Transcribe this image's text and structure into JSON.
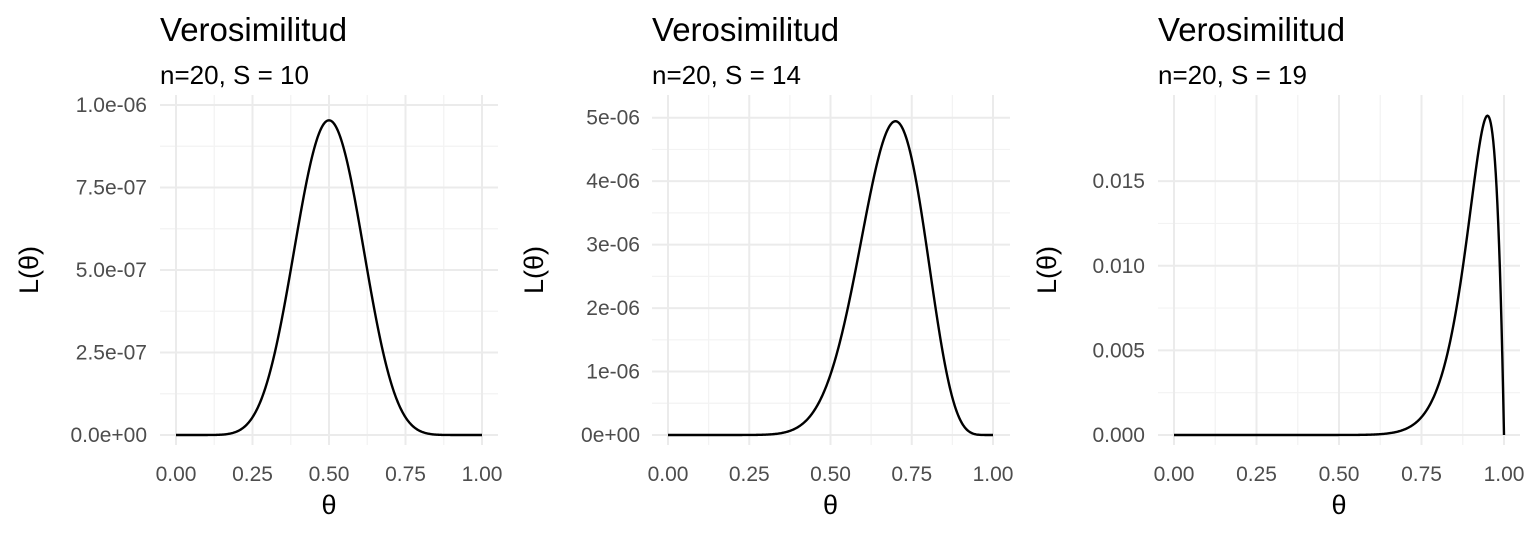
{
  "chart_data": [
    {
      "type": "line",
      "title": "Verosimilitud",
      "subtitle": "n=20, S = 10",
      "xlabel": "θ",
      "ylabel": "L(θ)",
      "n": 20,
      "S": 10,
      "xlim": [
        0,
        1
      ],
      "ylim": [
        0,
        1e-06
      ],
      "xticks": [
        "0.00",
        "0.25",
        "0.50",
        "0.75",
        "1.00"
      ],
      "xtick_values": [
        0,
        0.25,
        0.5,
        0.75,
        1
      ],
      "yticks": [
        "0.0e+00",
        "2.5e-07",
        "5.0e-07",
        "7.5e-07",
        "1.0e-06"
      ],
      "ytick_values": [
        0,
        2.5e-07,
        5e-07,
        7.5e-07,
        1e-06
      ],
      "series": [
        {
          "x": [
            0,
            0.05,
            0.1,
            0.15,
            0.2,
            0.25,
            0.3,
            0.35,
            0.4,
            0.45,
            0.5,
            0.55,
            0.6,
            0.65,
            0.7,
            0.75,
            0.8,
            0.85,
            0.9,
            0.95,
            1
          ],
          "values": [
            0,
            0,
            0,
            1e-12,
            1.1e-08,
            5.6e-08,
            1.77e-07,
            3.84e-07,
            6.22e-07,
            8.31e-07,
            9.54e-07,
            8.31e-07,
            6.22e-07,
            3.84e-07,
            1.77e-07,
            5.6e-08,
            1.1e-08,
            1e-12,
            0,
            0,
            0
          ]
        }
      ],
      "grid": true
    },
    {
      "type": "line",
      "title": "Verosimilitud",
      "subtitle": "n=20, S = 14",
      "xlabel": "θ",
      "ylabel": "L(θ)",
      "n": 20,
      "S": 14,
      "xlim": [
        0,
        1
      ],
      "ylim": [
        0,
        5.2e-06
      ],
      "xticks": [
        "0.00",
        "0.25",
        "0.50",
        "0.75",
        "1.00"
      ],
      "xtick_values": [
        0,
        0.25,
        0.5,
        0.75,
        1
      ],
      "yticks": [
        "0e+00",
        "1e-06",
        "2e-06",
        "3e-06",
        "4e-06",
        "5e-06"
      ],
      "ytick_values": [
        0,
        1e-06,
        2e-06,
        3e-06,
        4e-06,
        5e-06
      ],
      "series": [
        {
          "x": [
            0,
            0.05,
            0.1,
            0.15,
            0.2,
            0.25,
            0.3,
            0.35,
            0.4,
            0.45,
            0.5,
            0.55,
            0.6,
            0.65,
            0.7,
            0.75,
            0.8,
            0.85,
            0.9,
            0.95,
            1
          ],
          "values": [
            0,
            0,
            0,
            0,
            0,
            4e-09,
            2.3e-08,
            9.2e-08,
            2.82e-07,
            7.05e-07,
            1.49e-06,
            2.7e-06,
            3.89e-06,
            4.72e-06,
            4.94e-06,
            4.32e-06,
            2.88e-06,
            1.3e-06,
            3.81e-07,
            3.3e-08,
            0
          ]
        }
      ],
      "grid": true
    },
    {
      "type": "line",
      "title": "Verosimilitud",
      "subtitle": "n=20, S = 19",
      "xlabel": "θ",
      "ylabel": "L(θ)",
      "n": 20,
      "S": 19,
      "xlim": [
        0,
        1
      ],
      "ylim": [
        0,
        0.0195
      ],
      "xticks": [
        "0.00",
        "0.25",
        "0.50",
        "0.75",
        "1.00"
      ],
      "xtick_values": [
        0,
        0.25,
        0.5,
        0.75,
        1
      ],
      "yticks": [
        "0.000",
        "0.005",
        "0.010",
        "0.015"
      ],
      "ytick_values": [
        0,
        0.005,
        0.01,
        0.015
      ],
      "series": [
        {
          "x": [
            0,
            0.1,
            0.2,
            0.3,
            0.4,
            0.5,
            0.6,
            0.65,
            0.7,
            0.75,
            0.8,
            0.85,
            0.9,
            0.93,
            0.95,
            0.97,
            0.99,
            1
          ],
          "values": [
            0,
            0,
            0,
            0,
            0,
            0,
            3e-05,
            0.00011,
            0.00032,
            0.00106,
            0.00288,
            0.00661,
            0.01351,
            0.01755,
            0.01887,
            0.01636,
            0.00826,
            0
          ]
        }
      ],
      "grid": true
    }
  ]
}
